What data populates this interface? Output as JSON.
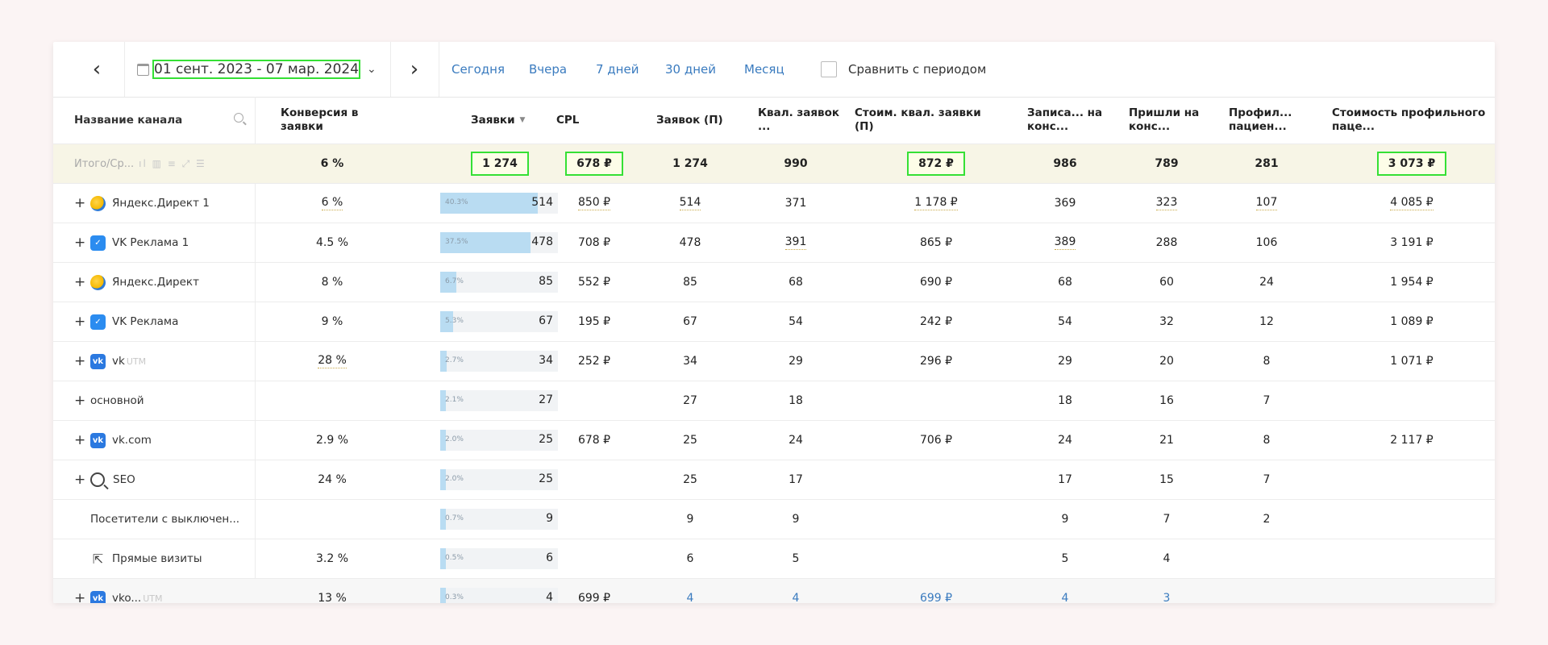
{
  "toolbar": {
    "prev_icon": "chevron-left-icon",
    "next_icon": "chevron-right-icon",
    "date_range": "01 сент. 2023 - 07 мар. 2024",
    "quick_ranges": [
      "Сегодня",
      "Вчера",
      "7 дней",
      "30 дней",
      "Месяц"
    ],
    "compare_label": "Сравнить с периодом"
  },
  "table": {
    "columns": [
      "Название канала",
      "Конверсия в заявки",
      "Заявки",
      "CPL",
      "Заявок (П)",
      "Квал. заявок ...",
      "Стоим. квал. заявки (П)",
      "Записа... на конс...",
      "Пришли на конс...",
      "Профил... пациен...",
      "Стоимость профильного паце..."
    ],
    "total": {
      "name": "Итого/Ср...",
      "conv": "6 %",
      "leads": "1 274",
      "cpl": "678 ₽",
      "leads_p": "1 274",
      "qual": "990",
      "qual_cost": "872 ₽",
      "booked": "986",
      "came": "789",
      "profile": "281",
      "profile_cost": "3 073 ₽"
    },
    "rows": [
      {
        "name": "Яндекс.Директ 1",
        "icon": "yandex-direct-icon",
        "conv": "6 %",
        "pct": "40.3%",
        "fill": 0.403,
        "leads": "514",
        "cpl": "850 ₽",
        "leads_p": "514",
        "qual": "371",
        "qual_cost": "1 178 ₽",
        "booked": "369",
        "came": "323",
        "profile": "107",
        "profile_cost": "4 085 ₽"
      },
      {
        "name": "VK Реклама 1",
        "icon": "vk-ads-icon",
        "conv": "4.5 %",
        "pct": "37.5%",
        "fill": 0.375,
        "leads": "478",
        "cpl": "708 ₽",
        "leads_p": "478",
        "qual": "391",
        "qual_cost": "865 ₽",
        "booked": "389",
        "came": "288",
        "profile": "106",
        "profile_cost": "3 191 ₽"
      },
      {
        "name": "Яндекс.Директ",
        "icon": "yandex-direct-icon",
        "conv": "8 %",
        "pct": "6.7%",
        "fill": 0.067,
        "leads": "85",
        "cpl": "552 ₽",
        "leads_p": "85",
        "qual": "68",
        "qual_cost": "690 ₽",
        "booked": "68",
        "came": "60",
        "profile": "24",
        "profile_cost": "1 954 ₽"
      },
      {
        "name": "VK Реклама",
        "icon": "vk-ads-icon",
        "conv": "9 %",
        "pct": "5.3%",
        "fill": 0.053,
        "leads": "67",
        "cpl": "195 ₽",
        "leads_p": "67",
        "qual": "54",
        "qual_cost": "242 ₽",
        "booked": "54",
        "came": "32",
        "profile": "12",
        "profile_cost": "1 089 ₽"
      },
      {
        "name": "vk",
        "suffix": "UTM",
        "icon": "vk-icon",
        "conv": "28 %",
        "pct": "2.7%",
        "fill": 0.027,
        "leads": "34",
        "cpl": "252 ₽",
        "leads_p": "34",
        "qual": "29",
        "qual_cost": "296 ₽",
        "booked": "29",
        "came": "20",
        "profile": "8",
        "profile_cost": "1 071 ₽"
      },
      {
        "name": "основной",
        "icon": "",
        "conv": "",
        "pct": "2.1%",
        "fill": 0.021,
        "leads": "27",
        "cpl": "",
        "leads_p": "27",
        "qual": "18",
        "qual_cost": "",
        "booked": "18",
        "came": "16",
        "profile": "7",
        "profile_cost": ""
      },
      {
        "name": "vk.com",
        "icon": "vk-icon",
        "conv": "2.9 %",
        "pct": "2.0%",
        "fill": 0.02,
        "leads": "25",
        "cpl": "678 ₽",
        "leads_p": "25",
        "qual": "24",
        "qual_cost": "706 ₽",
        "booked": "24",
        "came": "21",
        "profile": "8",
        "profile_cost": "2 117 ₽"
      },
      {
        "name": "SEO",
        "icon": "search-icon",
        "conv": "24 %",
        "pct": "2.0%",
        "fill": 0.02,
        "leads": "25",
        "cpl": "",
        "leads_p": "25",
        "qual": "17",
        "qual_cost": "",
        "booked": "17",
        "came": "15",
        "profile": "7",
        "profile_cost": ""
      },
      {
        "name": "Посетители с выключен...",
        "icon": "",
        "conv": "",
        "pct": "0.7%",
        "fill": 0.007,
        "leads": "9",
        "cpl": "",
        "leads_p": "9",
        "qual": "9",
        "qual_cost": "",
        "booked": "9",
        "came": "7",
        "profile": "2",
        "profile_cost": ""
      },
      {
        "name": "Прямые визиты",
        "icon": "cursor-icon",
        "conv": "3.2 %",
        "pct": "0.5%",
        "fill": 0.005,
        "leads": "6",
        "cpl": "",
        "leads_p": "6",
        "qual": "5",
        "qual_cost": "",
        "booked": "5",
        "came": "4",
        "profile": "",
        "profile_cost": ""
      },
      {
        "name": "vko...",
        "suffix": "UTM",
        "icon": "vk-icon",
        "conv": "13 %",
        "pct": "0.3%",
        "fill": 0.003,
        "leads": "4",
        "cpl": "699 ₽",
        "leads_p": "4",
        "qual": "4",
        "qual_cost": "699 ₽",
        "booked": "4",
        "came": "3",
        "profile": "",
        "profile_cost": ""
      }
    ]
  },
  "colors": {
    "highlight": "#35e035",
    "link": "#3a7bbf",
    "bar": "#b9dcf2",
    "total_bg": "#f7f5e6"
  }
}
